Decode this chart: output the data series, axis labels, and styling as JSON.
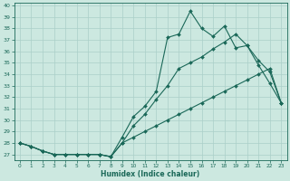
{
  "xlabel": "Humidex (Indice chaleur)",
  "bg_color": "#cce8e0",
  "grid_color": "#aacfc8",
  "line_color": "#1a6858",
  "xlim": [
    -0.5,
    23.5
  ],
  "ylim": [
    26.5,
    40.2
  ],
  "yticks": [
    27,
    28,
    29,
    30,
    31,
    32,
    33,
    34,
    35,
    36,
    37,
    38,
    39,
    40
  ],
  "xticks": [
    0,
    1,
    2,
    3,
    4,
    5,
    6,
    7,
    8,
    9,
    10,
    11,
    12,
    13,
    14,
    15,
    16,
    17,
    18,
    19,
    20,
    21,
    22,
    23
  ],
  "line1_x": [
    0,
    1,
    2,
    3,
    4,
    5,
    6,
    7,
    8,
    9,
    10,
    11,
    12,
    13,
    14,
    15,
    16,
    17,
    18,
    19,
    20,
    21,
    22,
    23
  ],
  "line1_y": [
    28.0,
    27.7,
    27.3,
    27.0,
    27.0,
    27.0,
    27.0,
    27.0,
    26.8,
    28.5,
    30.3,
    31.2,
    32.5,
    37.2,
    37.5,
    39.5,
    38.0,
    37.3,
    38.2,
    36.3,
    36.5,
    34.8,
    33.2,
    31.5
  ],
  "line2_x": [
    0,
    1,
    2,
    3,
    4,
    5,
    6,
    7,
    8,
    9,
    10,
    11,
    12,
    13,
    14,
    15,
    16,
    17,
    18,
    19,
    20,
    21,
    22,
    23
  ],
  "line2_y": [
    28.0,
    27.7,
    27.3,
    27.0,
    27.0,
    27.0,
    27.0,
    27.0,
    26.8,
    28.0,
    29.5,
    30.5,
    31.8,
    33.0,
    34.5,
    35.0,
    35.5,
    36.2,
    36.8,
    37.5,
    36.5,
    35.2,
    34.2,
    31.5
  ],
  "line3_x": [
    0,
    1,
    2,
    3,
    4,
    5,
    6,
    7,
    8,
    9,
    10,
    11,
    12,
    13,
    14,
    15,
    16,
    17,
    18,
    19,
    20,
    21,
    22,
    23
  ],
  "line3_y": [
    28.0,
    27.7,
    27.3,
    27.0,
    27.0,
    27.0,
    27.0,
    27.0,
    26.8,
    28.0,
    28.5,
    29.0,
    29.5,
    30.0,
    30.5,
    31.0,
    31.5,
    32.0,
    32.5,
    33.0,
    33.5,
    34.0,
    34.5,
    31.5
  ]
}
